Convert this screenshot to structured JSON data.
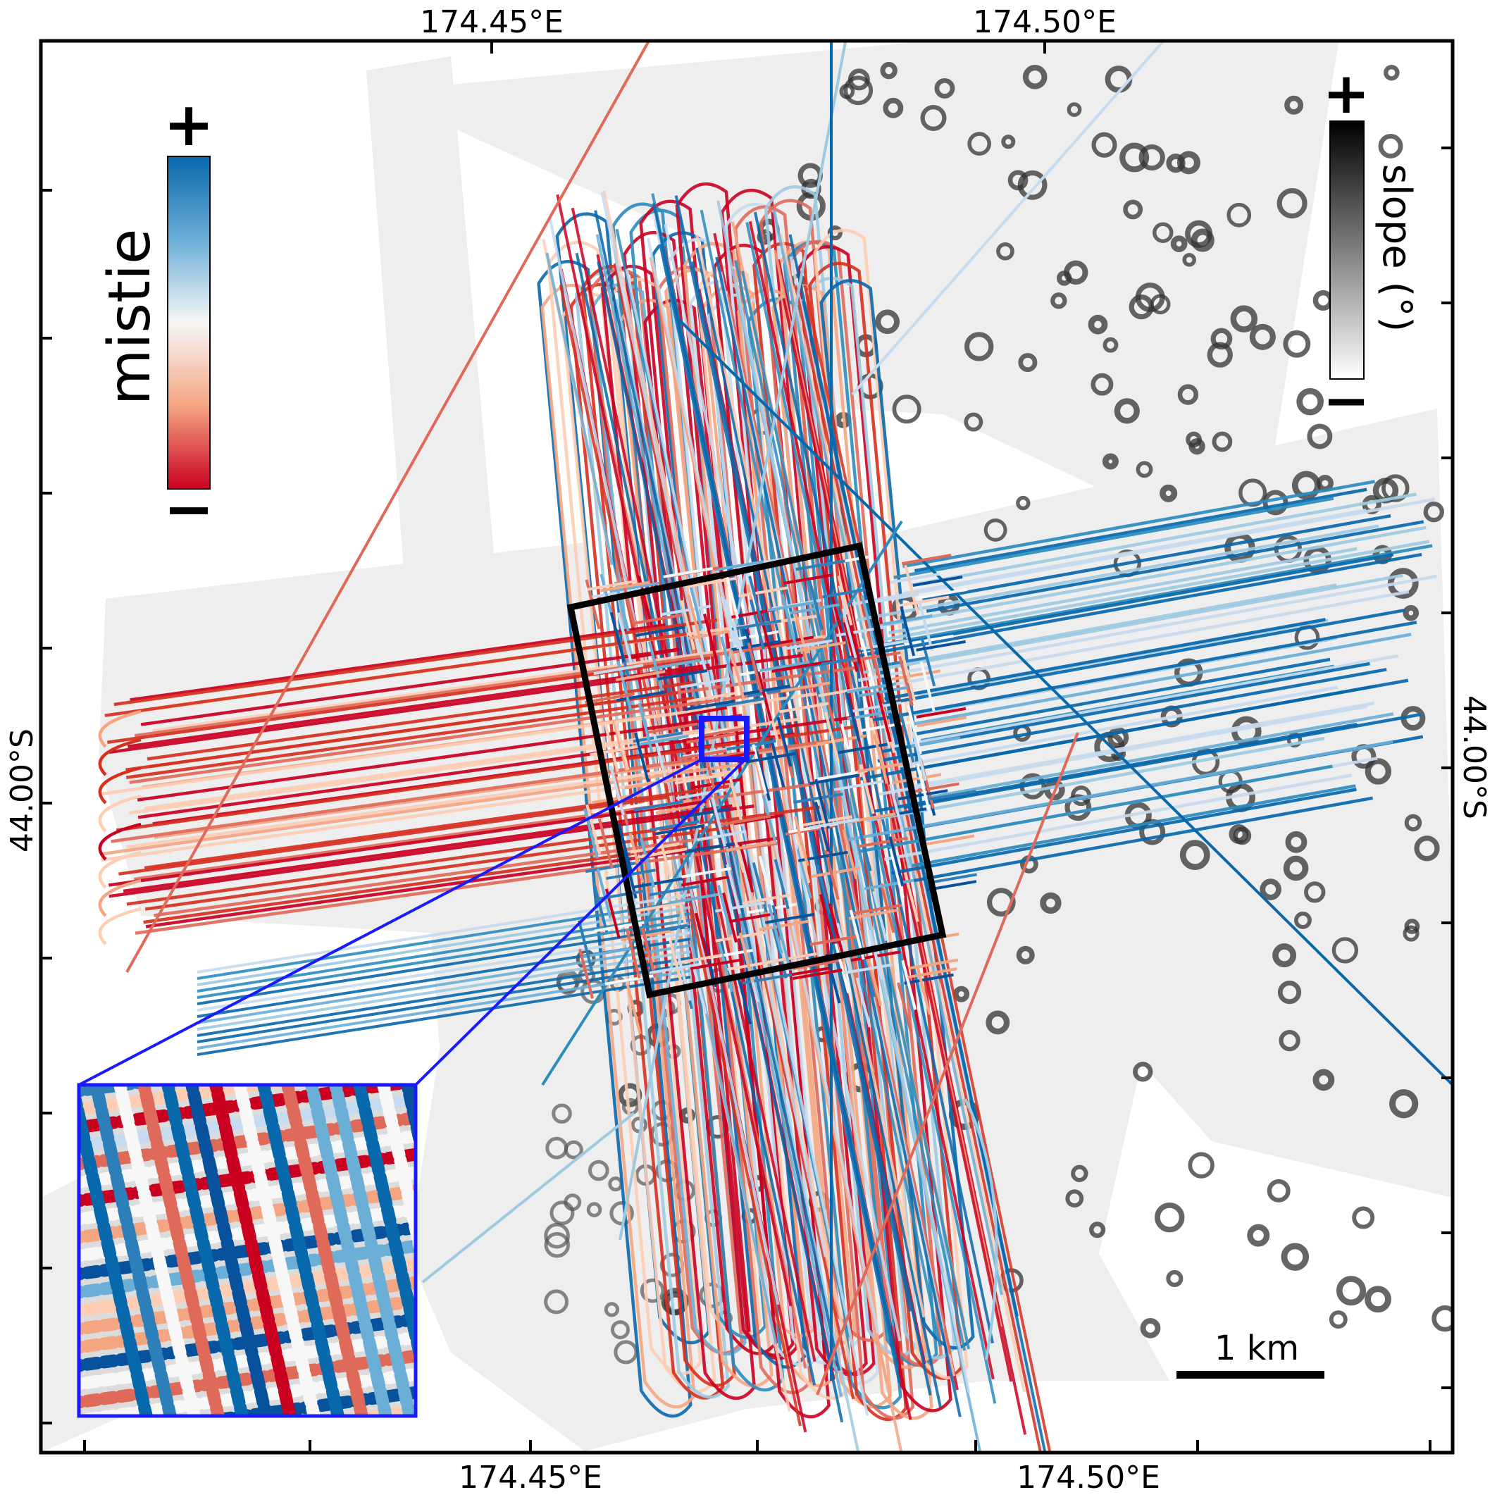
{
  "map": {
    "top_axis_labels": [
      "174.45°E",
      "174.50°E"
    ],
    "bottom_axis_labels": [
      "174.45°E",
      "174.50°E"
    ],
    "left_axis_label": "44.00°S",
    "right_axis_label": "44.00°S",
    "basemap": "grayscale seafloor slope with dark circular depressions (pockmarks)",
    "track_heading_ns": "NNW-SSE",
    "track_heading_ew": "ENE-WSW"
  },
  "legend_mistie": {
    "title": "mistie",
    "plus": "+",
    "minus": "−",
    "colors": [
      "#08519c",
      "#2c7fb8",
      "#6baed6",
      "#c6dbef",
      "#f7f7f7",
      "#fdcdb4",
      "#f4a582",
      "#e06a5a",
      "#ca0020"
    ]
  },
  "legend_slope": {
    "title": "slope (°)",
    "plus": "+",
    "minus": "−",
    "colors": [
      "#000000",
      "#ffffff"
    ]
  },
  "scale_bar": {
    "label": "1 km"
  },
  "colors": {
    "frame": "#000000",
    "detail_box": "#000000",
    "inset_box": "#1a1aff",
    "track_red": "#ca0020",
    "track_blue": "#0868ac"
  }
}
